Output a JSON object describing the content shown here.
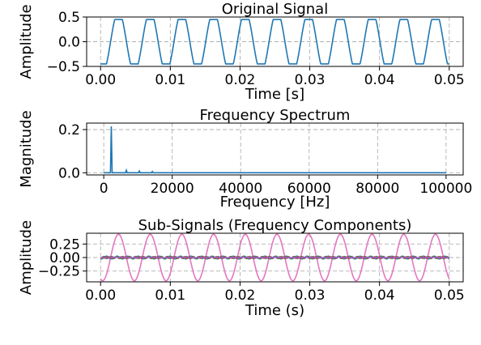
{
  "chart_data": [
    {
      "type": "line",
      "title": "Original Signal",
      "xlabel": "Time [s]",
      "ylabel": "Amplitude",
      "xlim": [
        -0.002,
        0.052
      ],
      "ylim": [
        -0.5,
        0.5
      ],
      "xticks": [
        0.0,
        0.01,
        0.02,
        0.03,
        0.04,
        0.05
      ],
      "xtick_labels": [
        "0.00",
        "0.01",
        "0.02",
        "0.03",
        "0.04",
        "0.05"
      ],
      "yticks": [
        -0.5,
        0.0,
        0.5
      ],
      "ytick_labels": [
        "−0.5",
        "0.0",
        "0.5"
      ],
      "grid": true,
      "series": [
        {
          "color": "#1f77b4",
          "waveform": "clipped sine",
          "frequency_hz": 220,
          "peak": 0.45,
          "x_range": [
            0.0,
            0.05
          ]
        }
      ]
    },
    {
      "type": "line",
      "title": "Frequency Spectrum",
      "xlabel": "Frequency [Hz]",
      "ylabel": "Magnitude",
      "xlim": [
        -5000,
        105000
      ],
      "ylim": [
        -0.01,
        0.23
      ],
      "xticks": [
        0,
        20000,
        40000,
        60000,
        80000,
        100000
      ],
      "xtick_labels": [
        "0",
        "20000",
        "40000",
        "60000",
        "80000",
        "100000"
      ],
      "yticks": [
        0.0,
        0.2
      ],
      "ytick_labels": [
        "0.0",
        "0.2"
      ],
      "grid": true,
      "series": [
        {
          "color": "#1f77b4",
          "baseline": 0.0,
          "x_range": [
            0,
            100000
          ],
          "peaks": [
            {
              "x": 2200,
              "y": 0.215
            },
            {
              "x": 6600,
              "y": 0.012
            },
            {
              "x": 10400,
              "y": 0.008
            },
            {
              "x": 14200,
              "y": 0.006
            }
          ]
        }
      ]
    },
    {
      "type": "line",
      "title": "Sub-Signals (Frequency Components)",
      "xlabel": "Time (s)",
      "ylabel": "Amplitude",
      "xlim": [
        -0.002,
        0.052
      ],
      "ylim": [
        -0.45,
        0.45
      ],
      "xticks": [
        0.0,
        0.01,
        0.02,
        0.03,
        0.04,
        0.05
      ],
      "xtick_labels": [
        "0.00",
        "0.01",
        "0.02",
        "0.03",
        "0.04",
        "0.05"
      ],
      "yticks": [
        -0.25,
        0.0,
        0.25
      ],
      "ytick_labels": [
        "−0.25",
        "0.00",
        "0.25"
      ],
      "grid": true,
      "series": [
        {
          "color": "#e377c2",
          "waveform": "sine",
          "frequency_hz": 220,
          "amplitude": 0.43
        },
        {
          "color": "#1f77b4",
          "waveform": "sine",
          "frequency_hz": 660,
          "amplitude": 0.025
        },
        {
          "color": "#2ca02c",
          "waveform": "sine",
          "frequency_hz": 1100,
          "amplitude": 0.02
        },
        {
          "color": "#d62728",
          "waveform": "sine",
          "frequency_hz": 1540,
          "amplitude": 0.015
        },
        {
          "color": "#9467bd",
          "waveform": "sine",
          "frequency_hz": 1980,
          "amplitude": 0.012
        }
      ]
    }
  ]
}
